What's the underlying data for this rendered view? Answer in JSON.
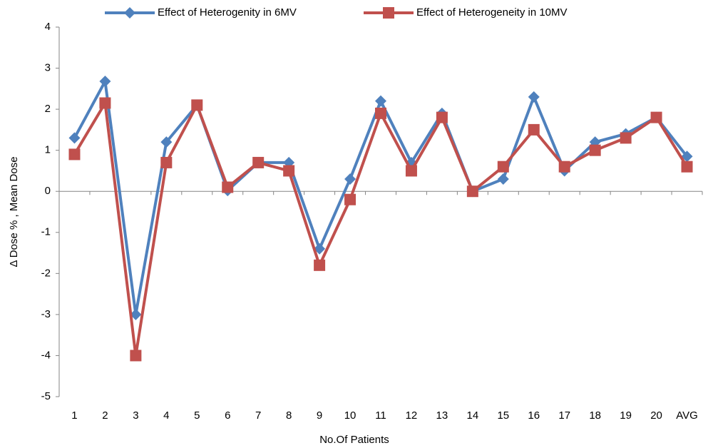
{
  "chart_data": {
    "type": "line",
    "x_label": "No.Of Patients",
    "y_label": "Δ Dose % , Mean Dose",
    "categories": [
      "1",
      "2",
      "3",
      "4",
      "5",
      "6",
      "7",
      "8",
      "9",
      "10",
      "11",
      "12",
      "13",
      "14",
      "15",
      "16",
      "17",
      "18",
      "19",
      "20",
      "AVG"
    ],
    "series": [
      {
        "name": "Effect of Heterogenity in 6MV",
        "color": "#4f81bd",
        "marker": "diamond",
        "values": [
          1.3,
          2.68,
          -3.0,
          1.2,
          2.1,
          0.02,
          0.7,
          0.7,
          -1.4,
          0.3,
          2.2,
          0.7,
          1.9,
          0.0,
          0.3,
          2.3,
          0.5,
          1.2,
          1.4,
          1.8,
          0.85
        ]
      },
      {
        "name": "Effect of Heterogeneity in 10MV",
        "color": "#c0504d",
        "marker": "square",
        "values": [
          0.9,
          2.15,
          -4.0,
          0.7,
          2.1,
          0.1,
          0.7,
          0.5,
          -1.8,
          -0.2,
          1.9,
          0.5,
          1.8,
          0.0,
          0.6,
          1.5,
          0.6,
          1.0,
          1.3,
          1.8,
          0.6
        ]
      }
    ],
    "ylim": [
      -5,
      4
    ],
    "yticks": [
      -5,
      -4,
      -3,
      -2,
      -1,
      0,
      1,
      2,
      3,
      4
    ],
    "grid": false,
    "legend": "top"
  }
}
